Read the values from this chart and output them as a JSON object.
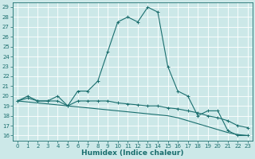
{
  "title": "",
  "xlabel": "Humidex (Indice chaleur)",
  "xlim": [
    -0.5,
    23.5
  ],
  "ylim": [
    15.5,
    29.5
  ],
  "xticks": [
    0,
    1,
    2,
    3,
    4,
    5,
    6,
    7,
    8,
    9,
    10,
    11,
    12,
    13,
    14,
    15,
    16,
    17,
    18,
    19,
    20,
    21,
    22,
    23
  ],
  "yticks": [
    16,
    17,
    18,
    19,
    20,
    21,
    22,
    23,
    24,
    25,
    26,
    27,
    28,
    29
  ],
  "bg_color": "#cce8e8",
  "grid_color": "#ffffff",
  "line_color": "#1a6e6e",
  "line1_x": [
    0,
    1,
    2,
    3,
    4,
    5,
    6,
    7,
    8,
    9,
    10,
    11,
    12,
    13,
    14,
    15,
    16,
    17,
    18,
    19,
    20,
    21,
    22,
    23
  ],
  "line1_y": [
    19.5,
    20.0,
    19.5,
    19.5,
    20.0,
    19.0,
    20.5,
    20.5,
    21.5,
    24.5,
    27.5,
    28.0,
    27.5,
    29.0,
    28.5,
    23.0,
    20.5,
    20.0,
    18.0,
    18.5,
    18.5,
    16.5,
    16.0,
    16.0
  ],
  "line2_x": [
    0,
    1,
    2,
    3,
    4,
    5,
    6,
    7,
    8,
    9,
    10,
    11,
    12,
    13,
    14,
    15,
    16,
    17,
    18,
    19,
    20,
    21,
    22,
    23
  ],
  "line2_y": [
    19.5,
    19.8,
    19.5,
    19.5,
    19.5,
    19.0,
    19.5,
    19.5,
    19.5,
    19.5,
    19.3,
    19.2,
    19.1,
    19.0,
    19.0,
    18.8,
    18.7,
    18.5,
    18.3,
    18.0,
    17.8,
    17.5,
    17.0,
    16.8
  ],
  "line3_x": [
    0,
    1,
    2,
    3,
    4,
    5,
    6,
    7,
    8,
    9,
    10,
    11,
    12,
    13,
    14,
    15,
    16,
    17,
    18,
    19,
    20,
    21,
    22,
    23
  ],
  "line3_y": [
    19.5,
    19.4,
    19.3,
    19.2,
    19.1,
    19.0,
    18.9,
    18.8,
    18.7,
    18.6,
    18.5,
    18.4,
    18.3,
    18.2,
    18.1,
    18.0,
    17.8,
    17.5,
    17.2,
    16.9,
    16.6,
    16.3,
    16.1,
    16.0
  ],
  "tick_fontsize": 5.0,
  "label_fontsize": 6.5,
  "lw": 0.8
}
